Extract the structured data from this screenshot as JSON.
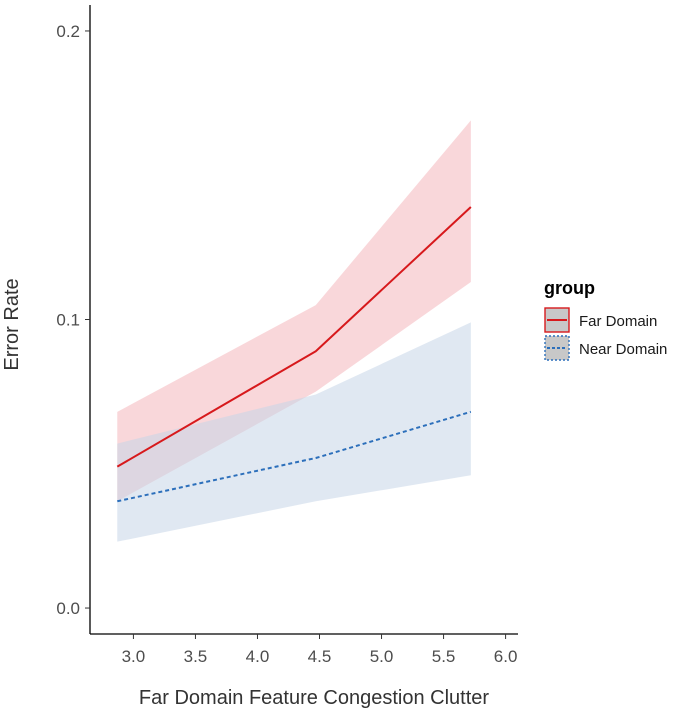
{
  "chart_data": {
    "type": "line",
    "title": "",
    "xlabel": "Far Domain Feature Congestion Clutter",
    "ylabel": "Error Rate",
    "xlim": [
      2.65,
      6.1
    ],
    "ylim": [
      -0.009,
      0.209
    ],
    "x_ticks": [
      3.0,
      3.5,
      4.0,
      4.5,
      5.0,
      5.5,
      6.0
    ],
    "x_tick_labels": [
      "3.0",
      "3.5",
      "4.0",
      "4.5",
      "5.0",
      "5.5",
      "6.0"
    ],
    "y_ticks": [
      0.0,
      0.1,
      0.2
    ],
    "y_tick_labels": [
      "0.0",
      "0.1",
      "0.2"
    ],
    "grid": false,
    "legend": {
      "title": "group",
      "position": "right"
    },
    "series": [
      {
        "name": "Far Domain",
        "color": "#d7191c",
        "ribbon_color": "#f4b6bc",
        "linestyle": "solid",
        "x": [
          2.87,
          4.47,
          5.72
        ],
        "values": [
          0.049,
          0.089,
          0.139
        ],
        "lower": [
          0.037,
          0.075,
          0.113
        ],
        "upper": [
          0.068,
          0.105,
          0.169
        ]
      },
      {
        "name": "Near Domain",
        "color": "#2c6fbb",
        "ribbon_color": "#c6d6e8",
        "linestyle": "dashed",
        "x": [
          2.87,
          4.47,
          5.72
        ],
        "values": [
          0.037,
          0.052,
          0.068
        ],
        "lower": [
          0.023,
          0.037,
          0.046
        ],
        "upper": [
          0.057,
          0.074,
          0.099
        ]
      }
    ]
  }
}
